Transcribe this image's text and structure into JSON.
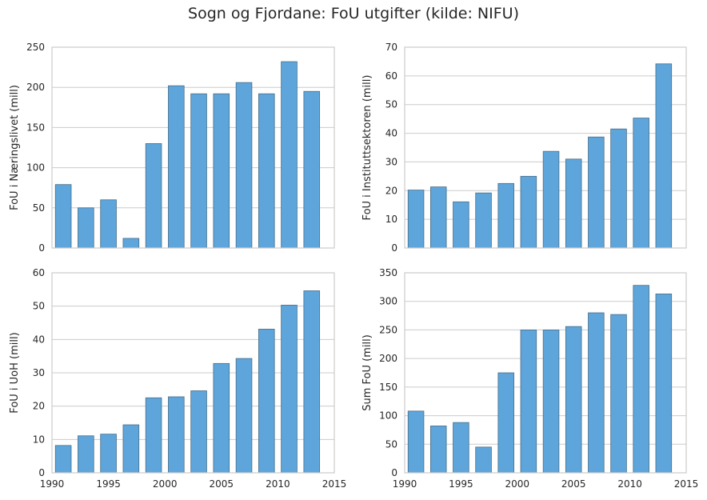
{
  "figure": {
    "title": "Sogn og Fjordane: FoU utgifter (kilde: NIFU)",
    "bar_color": "#5DA5DA"
  },
  "chart_data": [
    {
      "type": "bar",
      "x": [
        1991,
        1993,
        1995,
        1997,
        1999,
        2001,
        2003,
        2005,
        2007,
        2009,
        2011,
        2013
      ],
      "values": [
        79,
        50,
        60,
        12,
        130,
        202,
        192,
        192,
        206,
        192,
        232,
        195
      ],
      "ylabel": "FoU i Næringslivet (mill)",
      "ylim": [
        0,
        250
      ],
      "yticks": [
        "0",
        "50",
        "100",
        "150",
        "200",
        "250"
      ],
      "xlim": [
        1990,
        2015
      ],
      "xticks": [],
      "grid": true
    },
    {
      "type": "bar",
      "x": [
        1991,
        1993,
        1995,
        1997,
        1999,
        2001,
        2003,
        2005,
        2007,
        2009,
        2011,
        2013
      ],
      "values": [
        20.2,
        21.3,
        16.1,
        19.2,
        22.5,
        25.0,
        33.7,
        31.0,
        38.7,
        41.5,
        45.3,
        64.2
      ],
      "ylabel": "FoU i Instituttsektoren (mill)",
      "ylim": [
        0,
        70
      ],
      "yticks": [
        "0",
        "10",
        "20",
        "30",
        "40",
        "50",
        "60",
        "70"
      ],
      "xlim": [
        1990,
        2015
      ],
      "xticks": [],
      "grid": true
    },
    {
      "type": "bar",
      "x": [
        1991,
        1993,
        1995,
        1997,
        1999,
        2001,
        2003,
        2005,
        2007,
        2009,
        2011,
        2013
      ],
      "values": [
        8.2,
        11.1,
        11.6,
        14.4,
        22.5,
        22.8,
        24.6,
        32.8,
        34.3,
        43.1,
        50.3,
        54.6
      ],
      "ylabel": "FoU i UoH (mill)",
      "ylim": [
        0,
        60
      ],
      "yticks": [
        "0",
        "10",
        "20",
        "30",
        "40",
        "50",
        "60"
      ],
      "xlim": [
        1990,
        2015
      ],
      "xticks": [
        "1990",
        "1995",
        "2000",
        "2005",
        "2010",
        "2015"
      ],
      "grid": true
    },
    {
      "type": "bar",
      "x": [
        1991,
        1993,
        1995,
        1997,
        1999,
        2001,
        2003,
        2005,
        2007,
        2009,
        2011,
        2013
      ],
      "values": [
        108,
        82,
        88,
        45,
        175,
        250,
        250,
        256,
        280,
        277,
        328,
        313
      ],
      "ylabel": "Sum FoU (mill)",
      "ylim": [
        0,
        350
      ],
      "yticks": [
        "0",
        "50",
        "100",
        "150",
        "200",
        "250",
        "300",
        "350"
      ],
      "xlim": [
        1990,
        2015
      ],
      "xticks": [
        "1990",
        "1995",
        "2000",
        "2005",
        "2010",
        "2015"
      ],
      "grid": true
    }
  ]
}
